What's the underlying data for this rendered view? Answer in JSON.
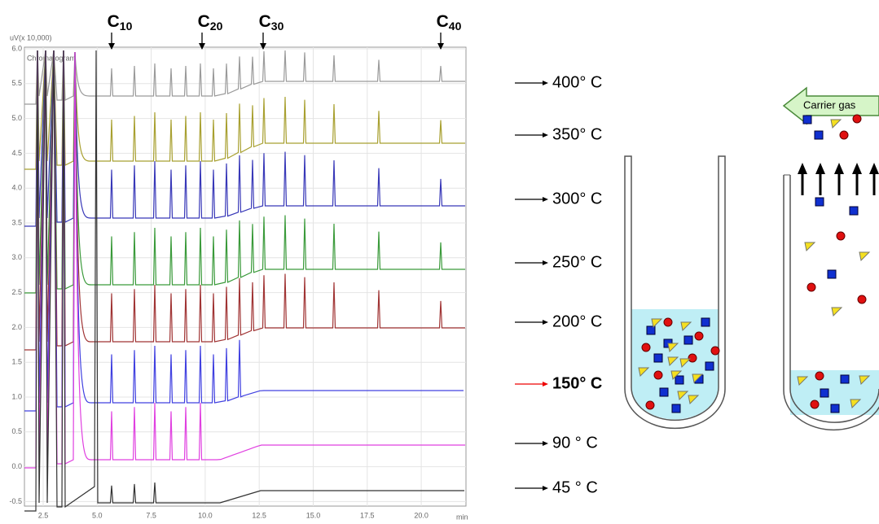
{
  "chromatogram": {
    "y_label": "uV(x 10,000)",
    "name": "Chromatogram",
    "yticks": [
      "6.0",
      "5.5",
      "5.0",
      "4.5",
      "4.0",
      "3.5",
      "3.0",
      "2.5",
      "2.0",
      "1.5",
      "1.0",
      "0.5",
      "0.0",
      "-0.5"
    ],
    "xticks": [
      "2.5",
      "5.0",
      "7.5",
      "10.0",
      "12.5",
      "15.0",
      "17.5",
      "20.0"
    ],
    "x_unit": "min",
    "peaks": [
      {
        "base": "C",
        "sub": "10"
      },
      {
        "base": "C",
        "sub": "20"
      },
      {
        "base": "C",
        "sub": "30"
      },
      {
        "base": "C",
        "sub": "40"
      }
    ]
  },
  "temperatures": [
    "400° C",
    "350° C",
    "300° C",
    "250° C",
    "200° C",
    "150° C",
    "90 ° C",
    "45 ° C"
  ],
  "diagram": {
    "carrier_label": "Carrier gas"
  }
}
